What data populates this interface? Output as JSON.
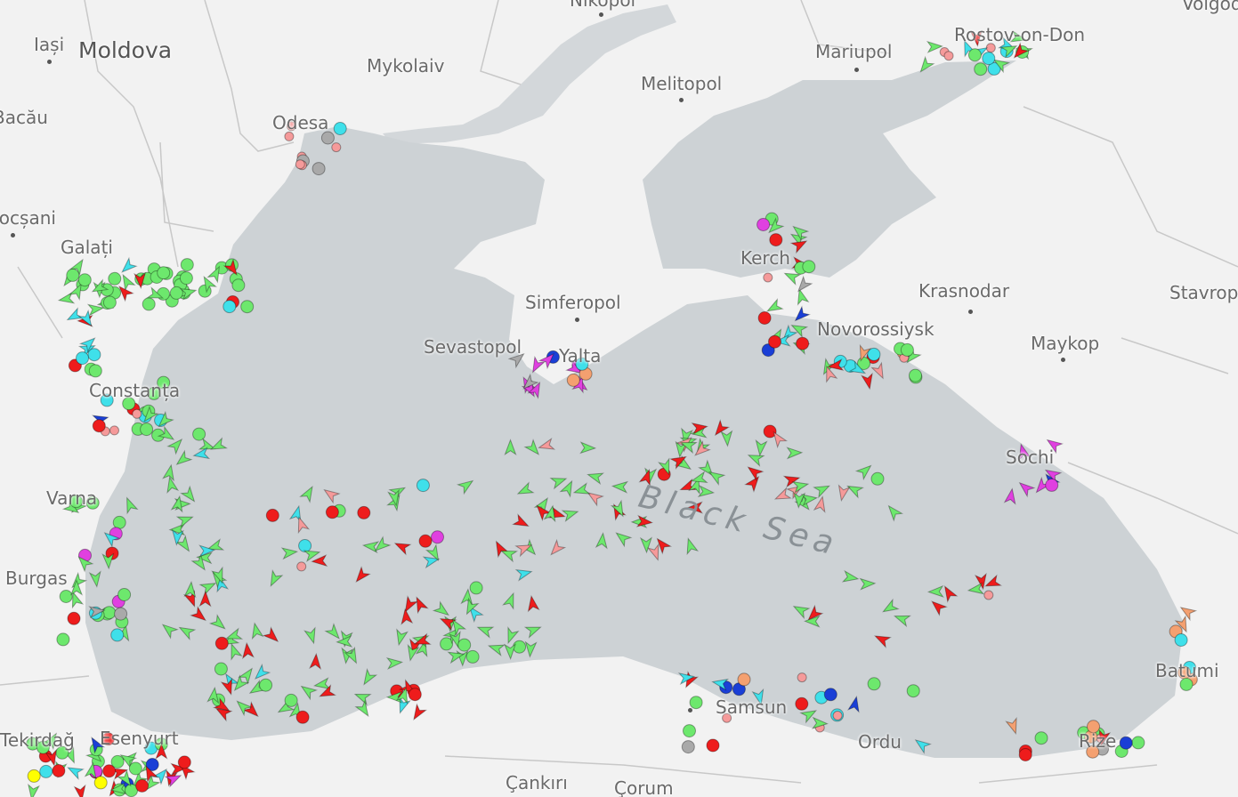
{
  "map": {
    "sea_name": "Black Sea",
    "country_labels": [
      "Moldova"
    ],
    "cities": [
      "Iași",
      "Bacău",
      "Focșani",
      "Galați",
      "Odesa",
      "Mykolaiv",
      "Nikopol",
      "Melitopol",
      "Mariupol",
      "Rostov-on-Don",
      "Volgodonsk",
      "Simferopol",
      "Sevastopol",
      "Yalta",
      "Kerch",
      "Krasnodar",
      "Novorossiysk",
      "Maykop",
      "Stavropol",
      "Sochi",
      "Constanța",
      "Varna",
      "Burgas",
      "Tekirdağ",
      "Esenyurt",
      "Samsun",
      "Ordu",
      "Rize",
      "Batumi",
      "Çankırı",
      "Çorum"
    ],
    "colors": {
      "land": "#f2f2f2",
      "sea": "#cdd2d5",
      "cargo": "#6de86d",
      "tanker": "#ee1c1c",
      "passenger": "#3fe0ea",
      "unspecified": "#a9a9a9",
      "anchored_tanker": "#f59a9a",
      "high_speed": "#e040e0",
      "tug_special": "#f4a070",
      "fishing": "#f4a070",
      "navigation_aid": "#1a3fd6",
      "yacht": "#ffff00"
    }
  }
}
